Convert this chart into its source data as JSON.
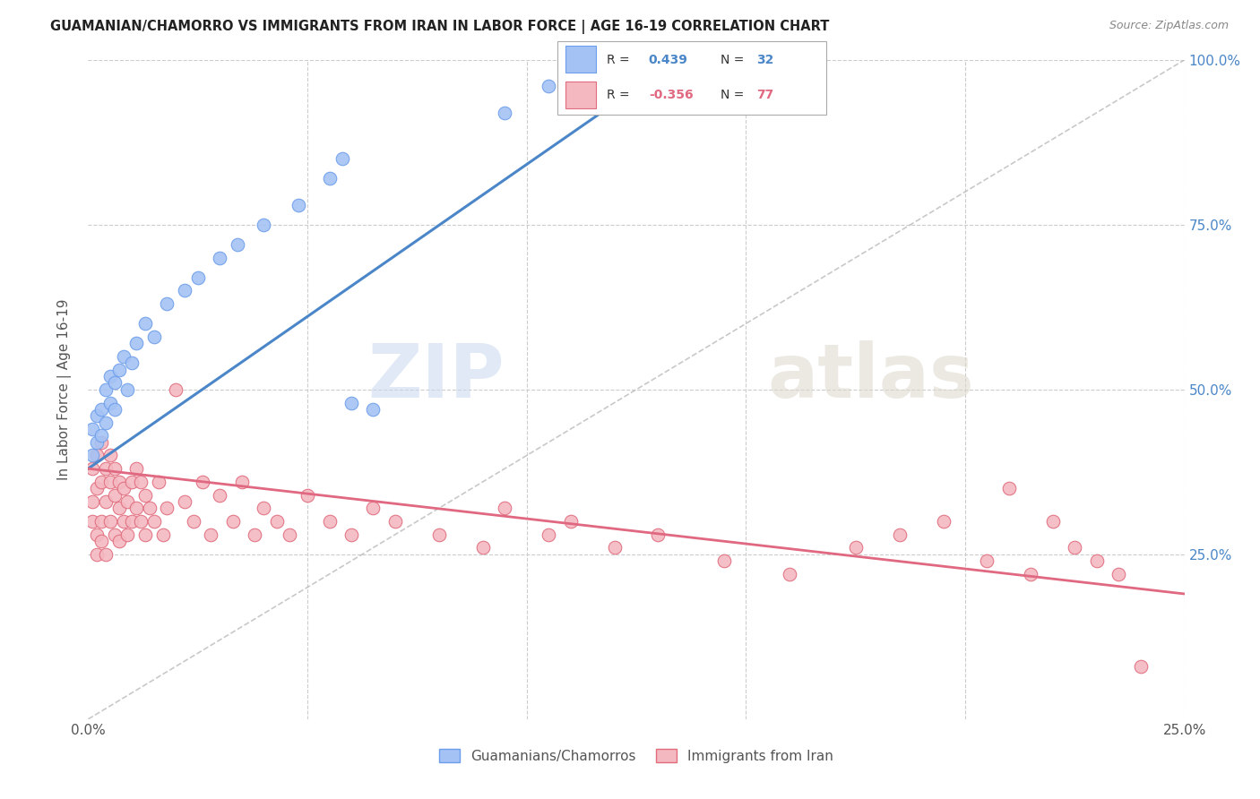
{
  "title": "GUAMANIAN/CHAMORRO VS IMMIGRANTS FROM IRAN IN LABOR FORCE | AGE 16-19 CORRELATION CHART",
  "source": "Source: ZipAtlas.com",
  "ylabel": "In Labor Force | Age 16-19",
  "x_min": 0.0,
  "x_max": 0.25,
  "y_min": 0.0,
  "y_max": 1.0,
  "blue_color": "#a4c2f4",
  "pink_color": "#f4b8c1",
  "blue_edge_color": "#6d9eeb",
  "pink_edge_color": "#e06c7d",
  "blue_line_color": "#4a86c8",
  "pink_line_color": "#e06880",
  "gray_dash_color": "#bbbbbb",
  "R_blue": 0.439,
  "N_blue": 32,
  "R_pink": -0.356,
  "N_pink": 77,
  "legend_label_blue": "Guamanians/Chamorros",
  "legend_label_pink": "Immigrants from Iran",
  "blue_scatter_x": [
    0.001,
    0.001,
    0.002,
    0.002,
    0.003,
    0.003,
    0.004,
    0.004,
    0.005,
    0.005,
    0.006,
    0.006,
    0.007,
    0.008,
    0.009,
    0.01,
    0.011,
    0.013,
    0.015,
    0.018,
    0.022,
    0.025,
    0.03,
    0.034,
    0.04,
    0.048,
    0.055,
    0.058,
    0.06,
    0.065,
    0.095,
    0.105
  ],
  "blue_scatter_y": [
    0.4,
    0.44,
    0.42,
    0.46,
    0.43,
    0.47,
    0.45,
    0.5,
    0.48,
    0.52,
    0.47,
    0.51,
    0.53,
    0.55,
    0.5,
    0.54,
    0.57,
    0.6,
    0.58,
    0.63,
    0.65,
    0.67,
    0.7,
    0.72,
    0.75,
    0.78,
    0.82,
    0.85,
    0.48,
    0.47,
    0.92,
    0.96
  ],
  "pink_scatter_x": [
    0.001,
    0.001,
    0.001,
    0.002,
    0.002,
    0.002,
    0.002,
    0.003,
    0.003,
    0.003,
    0.003,
    0.004,
    0.004,
    0.004,
    0.005,
    0.005,
    0.005,
    0.006,
    0.006,
    0.006,
    0.007,
    0.007,
    0.007,
    0.008,
    0.008,
    0.009,
    0.009,
    0.01,
    0.01,
    0.011,
    0.011,
    0.012,
    0.012,
    0.013,
    0.013,
    0.014,
    0.015,
    0.016,
    0.017,
    0.018,
    0.02,
    0.022,
    0.024,
    0.026,
    0.028,
    0.03,
    0.033,
    0.035,
    0.038,
    0.04,
    0.043,
    0.046,
    0.05,
    0.055,
    0.06,
    0.065,
    0.07,
    0.08,
    0.09,
    0.095,
    0.105,
    0.11,
    0.12,
    0.13,
    0.145,
    0.16,
    0.175,
    0.185,
    0.195,
    0.205,
    0.21,
    0.215,
    0.22,
    0.225,
    0.23,
    0.235,
    0.24
  ],
  "pink_scatter_y": [
    0.33,
    0.38,
    0.3,
    0.28,
    0.35,
    0.4,
    0.25,
    0.3,
    0.36,
    0.42,
    0.27,
    0.33,
    0.38,
    0.25,
    0.3,
    0.36,
    0.4,
    0.28,
    0.34,
    0.38,
    0.27,
    0.32,
    0.36,
    0.3,
    0.35,
    0.28,
    0.33,
    0.3,
    0.36,
    0.32,
    0.38,
    0.3,
    0.36,
    0.28,
    0.34,
    0.32,
    0.3,
    0.36,
    0.28,
    0.32,
    0.5,
    0.33,
    0.3,
    0.36,
    0.28,
    0.34,
    0.3,
    0.36,
    0.28,
    0.32,
    0.3,
    0.28,
    0.34,
    0.3,
    0.28,
    0.32,
    0.3,
    0.28,
    0.26,
    0.32,
    0.28,
    0.3,
    0.26,
    0.28,
    0.24,
    0.22,
    0.26,
    0.28,
    0.3,
    0.24,
    0.35,
    0.22,
    0.3,
    0.26,
    0.24,
    0.22,
    0.08
  ],
  "blue_trend_x0": 0.0,
  "blue_trend_y0": 0.38,
  "blue_trend_x1": 0.13,
  "blue_trend_y1": 0.98,
  "pink_trend_x0": 0.0,
  "pink_trend_y0": 0.38,
  "pink_trend_x1": 0.25,
  "pink_trend_y1": 0.19
}
